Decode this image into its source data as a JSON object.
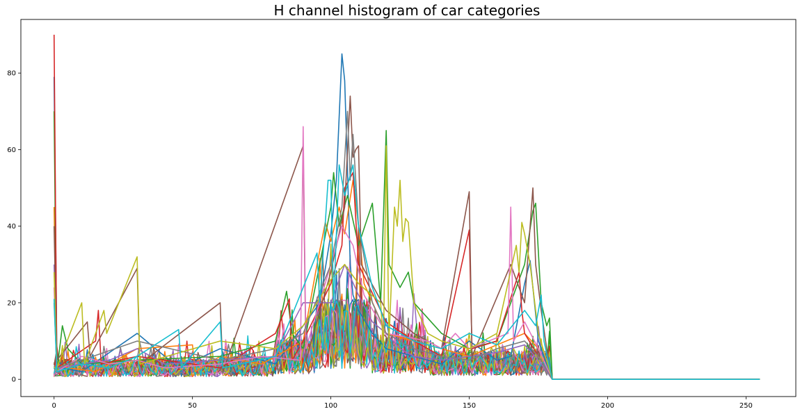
{
  "chart_data": {
    "type": "line",
    "title": "H channel histogram of car categories",
    "xlabel": "",
    "ylabel": "",
    "xlim": [
      -12,
      268
    ],
    "ylim": [
      -4.5,
      94
    ],
    "x_ticks": [
      0,
      50,
      100,
      150,
      200,
      250
    ],
    "y_ticks": [
      0,
      20,
      40,
      60,
      80
    ],
    "x_tick_labels": [
      "0",
      "50",
      "100",
      "150",
      "200",
      "250"
    ],
    "y_tick_labels": [
      "0",
      "20",
      "40",
      "60",
      "80"
    ],
    "grid": false,
    "legend": "none",
    "bins": 256,
    "colors": [
      "#1f77b4",
      "#ff7f0e",
      "#2ca02c",
      "#d62728",
      "#9467bd",
      "#8c564b",
      "#e377c2",
      "#7f7f7f",
      "#bcbd22",
      "#17becf"
    ],
    "series": [
      {
        "color": "#1f77b4",
        "points": [
          [
            0,
            79
          ],
          [
            1,
            6
          ],
          [
            3,
            3
          ],
          [
            10,
            2
          ],
          [
            30,
            12
          ],
          [
            45,
            3
          ],
          [
            60,
            8
          ],
          [
            80,
            4
          ],
          [
            90,
            14
          ],
          [
            96,
            20
          ],
          [
            100,
            38
          ],
          [
            102,
            52
          ],
          [
            104,
            85
          ],
          [
            105,
            78
          ],
          [
            106,
            55
          ],
          [
            107,
            30
          ],
          [
            108,
            22
          ],
          [
            110,
            18
          ],
          [
            115,
            12
          ],
          [
            120,
            8
          ],
          [
            130,
            6
          ],
          [
            140,
            4
          ],
          [
            150,
            10
          ],
          [
            160,
            5
          ],
          [
            165,
            6
          ],
          [
            170,
            25
          ],
          [
            172,
            31
          ],
          [
            175,
            10
          ],
          [
            178,
            4
          ],
          [
            180,
            0
          ],
          [
            255,
            0
          ]
        ]
      },
      {
        "color": "#ff7f0e",
        "points": [
          [
            0,
            45
          ],
          [
            1,
            4
          ],
          [
            5,
            3
          ],
          [
            15,
            2
          ],
          [
            30,
            8
          ],
          [
            50,
            9
          ],
          [
            51,
            2
          ],
          [
            60,
            6
          ],
          [
            75,
            4
          ],
          [
            90,
            10
          ],
          [
            95,
            30
          ],
          [
            98,
            41
          ],
          [
            100,
            36
          ],
          [
            103,
            45
          ],
          [
            105,
            38
          ],
          [
            108,
            52
          ],
          [
            110,
            40
          ],
          [
            112,
            25
          ],
          [
            120,
            12
          ],
          [
            130,
            10
          ],
          [
            140,
            8
          ],
          [
            150,
            6
          ],
          [
            160,
            9
          ],
          [
            170,
            12
          ],
          [
            175,
            8
          ],
          [
            180,
            0
          ],
          [
            255,
            0
          ]
        ]
      },
      {
        "color": "#2ca02c",
        "points": [
          [
            0,
            70
          ],
          [
            1,
            2
          ],
          [
            3,
            14
          ],
          [
            5,
            8
          ],
          [
            10,
            4
          ],
          [
            30,
            5
          ],
          [
            60,
            6
          ],
          [
            80,
            10
          ],
          [
            84,
            23
          ],
          [
            86,
            12
          ],
          [
            90,
            8
          ],
          [
            100,
            45
          ],
          [
            101,
            54
          ],
          [
            103,
            40
          ],
          [
            106,
            48
          ],
          [
            110,
            35
          ],
          [
            115,
            46
          ],
          [
            118,
            20
          ],
          [
            120,
            65
          ],
          [
            121,
            30
          ],
          [
            125,
            24
          ],
          [
            128,
            28
          ],
          [
            130,
            20
          ],
          [
            140,
            12
          ],
          [
            150,
            8
          ],
          [
            160,
            10
          ],
          [
            170,
            30
          ],
          [
            173,
            44
          ],
          [
            174,
            46
          ],
          [
            176,
            20
          ],
          [
            178,
            14
          ],
          [
            179,
            16
          ],
          [
            180,
            0
          ],
          [
            255,
            0
          ]
        ]
      },
      {
        "color": "#d62728",
        "points": [
          [
            0,
            90
          ],
          [
            1,
            3
          ],
          [
            5,
            5
          ],
          [
            15,
            10
          ],
          [
            16,
            18
          ],
          [
            17,
            4
          ],
          [
            30,
            6
          ],
          [
            60,
            3
          ],
          [
            80,
            12
          ],
          [
            85,
            21
          ],
          [
            86,
            5
          ],
          [
            90,
            10
          ],
          [
            100,
            25
          ],
          [
            104,
            35
          ],
          [
            105,
            50
          ],
          [
            108,
            54
          ],
          [
            110,
            30
          ],
          [
            120,
            15
          ],
          [
            130,
            10
          ],
          [
            140,
            6
          ],
          [
            150,
            39
          ],
          [
            151,
            8
          ],
          [
            160,
            10
          ],
          [
            168,
            28
          ],
          [
            169,
            18
          ],
          [
            170,
            12
          ],
          [
            175,
            6
          ],
          [
            180,
            0
          ],
          [
            255,
            0
          ]
        ]
      },
      {
        "color": "#9467bd",
        "points": [
          [
            0,
            30
          ],
          [
            1,
            3
          ],
          [
            10,
            4
          ],
          [
            20,
            5
          ],
          [
            30,
            8
          ],
          [
            40,
            4
          ],
          [
            60,
            5
          ],
          [
            80,
            6
          ],
          [
            90,
            20
          ],
          [
            100,
            20
          ],
          [
            105,
            30
          ],
          [
            110,
            22
          ],
          [
            115,
            15
          ],
          [
            120,
            12
          ],
          [
            125,
            8
          ],
          [
            130,
            6
          ],
          [
            140,
            5
          ],
          [
            150,
            6
          ],
          [
            160,
            7
          ],
          [
            170,
            9
          ],
          [
            175,
            5
          ],
          [
            180,
            0
          ],
          [
            255,
            0
          ]
        ]
      },
      {
        "color": "#8c564b",
        "points": [
          [
            0,
            40
          ],
          [
            1,
            5
          ],
          [
            12,
            15
          ],
          [
            13,
            6
          ],
          [
            30,
            29
          ],
          [
            31,
            4
          ],
          [
            60,
            20
          ],
          [
            61,
            2
          ],
          [
            90,
            61
          ],
          [
            91,
            5
          ],
          [
            100,
            28
          ],
          [
            105,
            45
          ],
          [
            107,
            74
          ],
          [
            108,
            58
          ],
          [
            109,
            60
          ],
          [
            110,
            61
          ],
          [
            111,
            30
          ],
          [
            120,
            18
          ],
          [
            130,
            12
          ],
          [
            140,
            8
          ],
          [
            150,
            49
          ],
          [
            151,
            6
          ],
          [
            165,
            30
          ],
          [
            170,
            20
          ],
          [
            173,
            50
          ],
          [
            174,
            30
          ],
          [
            176,
            18
          ],
          [
            178,
            8
          ],
          [
            180,
            0
          ],
          [
            255,
            0
          ]
        ]
      },
      {
        "color": "#e377c2",
        "points": [
          [
            0,
            24
          ],
          [
            1,
            2
          ],
          [
            10,
            6
          ],
          [
            20,
            4
          ],
          [
            30,
            5
          ],
          [
            40,
            3
          ],
          [
            60,
            4
          ],
          [
            75,
            6
          ],
          [
            89,
            5
          ],
          [
            90,
            66
          ],
          [
            91,
            8
          ],
          [
            100,
            30
          ],
          [
            104,
            40
          ],
          [
            108,
            35
          ],
          [
            112,
            22
          ],
          [
            120,
            12
          ],
          [
            135,
            10
          ],
          [
            140,
            8
          ],
          [
            145,
            12
          ],
          [
            150,
            8
          ],
          [
            164,
            12
          ],
          [
            165,
            45
          ],
          [
            166,
            10
          ],
          [
            170,
            15
          ],
          [
            175,
            8
          ],
          [
            180,
            0
          ],
          [
            255,
            0
          ]
        ]
      },
      {
        "color": "#7f7f7f",
        "points": [
          [
            0,
            20
          ],
          [
            1,
            3
          ],
          [
            10,
            5
          ],
          [
            30,
            10
          ],
          [
            60,
            5
          ],
          [
            80,
            8
          ],
          [
            90,
            12
          ],
          [
            100,
            30
          ],
          [
            104,
            45
          ],
          [
            106,
            70
          ],
          [
            107,
            52
          ],
          [
            108,
            64
          ],
          [
            110,
            40
          ],
          [
            115,
            20
          ],
          [
            120,
            12
          ],
          [
            130,
            8
          ],
          [
            140,
            6
          ],
          [
            150,
            5
          ],
          [
            160,
            8
          ],
          [
            170,
            10
          ],
          [
            175,
            6
          ],
          [
            180,
            0
          ],
          [
            255,
            0
          ]
        ]
      },
      {
        "color": "#bcbd22",
        "points": [
          [
            0,
            28
          ],
          [
            1,
            3
          ],
          [
            10,
            20
          ],
          [
            11,
            4
          ],
          [
            18,
            18
          ],
          [
            19,
            12
          ],
          [
            30,
            32
          ],
          [
            31,
            4
          ],
          [
            60,
            10
          ],
          [
            80,
            8
          ],
          [
            90,
            14
          ],
          [
            100,
            26
          ],
          [
            105,
            30
          ],
          [
            110,
            25
          ],
          [
            118,
            20
          ],
          [
            119,
            8
          ],
          [
            120,
            61
          ],
          [
            121,
            10
          ],
          [
            123,
            45
          ],
          [
            124,
            40
          ],
          [
            125,
            52
          ],
          [
            126,
            36
          ],
          [
            127,
            42
          ],
          [
            128,
            41
          ],
          [
            130,
            20
          ],
          [
            135,
            12
          ],
          [
            140,
            10
          ],
          [
            150,
            8
          ],
          [
            160,
            12
          ],
          [
            167,
            35
          ],
          [
            168,
            28
          ],
          [
            169,
            41
          ],
          [
            170,
            38
          ],
          [
            172,
            30
          ],
          [
            175,
            12
          ],
          [
            180,
            0
          ],
          [
            255,
            0
          ]
        ]
      },
      {
        "color": "#17becf",
        "points": [
          [
            0,
            21
          ],
          [
            1,
            2
          ],
          [
            10,
            4
          ],
          [
            20,
            3
          ],
          [
            30,
            6
          ],
          [
            45,
            13
          ],
          [
            46,
            3
          ],
          [
            60,
            15
          ],
          [
            61,
            3
          ],
          [
            80,
            6
          ],
          [
            95,
            33
          ],
          [
            96,
            20
          ],
          [
            98,
            41
          ],
          [
            99,
            52
          ],
          [
            100,
            52
          ],
          [
            101,
            20
          ],
          [
            103,
            56
          ],
          [
            105,
            48
          ],
          [
            108,
            56
          ],
          [
            110,
            40
          ],
          [
            115,
            24
          ],
          [
            120,
            14
          ],
          [
            130,
            10
          ],
          [
            140,
            8
          ],
          [
            150,
            12
          ],
          [
            160,
            9
          ],
          [
            170,
            18
          ],
          [
            174,
            14
          ],
          [
            176,
            22
          ],
          [
            177,
            10
          ],
          [
            180,
            0
          ],
          [
            255,
            0
          ]
        ]
      }
    ]
  }
}
